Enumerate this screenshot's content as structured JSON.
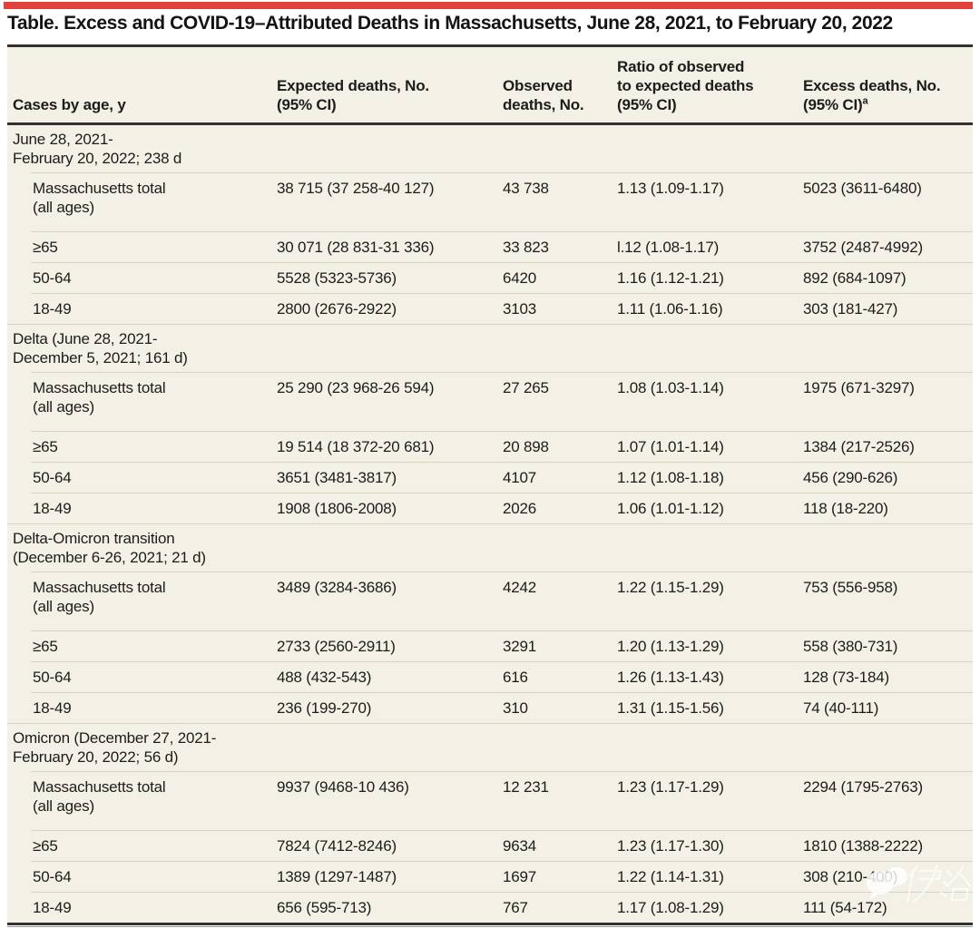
{
  "page": {
    "title": "Table. Excess and COVID-19–Attributed Deaths in Massachusetts, June 28, 2021, to February 20, 2022"
  },
  "colors": {
    "accent_red": "#e2403b",
    "table_background": "#f3f1e5",
    "row_separator": "#d7d4c5",
    "rule_dark": "#32312d",
    "text": "#1d1c1a"
  },
  "table": {
    "columns": [
      {
        "lines": [
          "Cases by age, y"
        ]
      },
      {
        "lines": [
          "Expected deaths, No.",
          "(95% CI)"
        ]
      },
      {
        "lines": [
          "Observed",
          "deaths, No."
        ]
      },
      {
        "lines": [
          "Ratio of observed",
          "to expected deaths",
          "(95% CI)"
        ]
      },
      {
        "lines": [
          "Excess deaths, No.",
          "(95% CI)"
        ],
        "sup": "a"
      }
    ],
    "sections": [
      {
        "label_lines": [
          "June 28, 2021-",
          "February 20, 2022; 238 d"
        ],
        "rows": [
          {
            "age_lines": [
              "Massachusetts total",
              "(all ages)"
            ],
            "expected": "38 715 (37 258-40 127)",
            "observed": "43 738",
            "ratio": "1.13 (1.09-1.17)",
            "excess": "5023 (3611-6480)"
          },
          {
            "age_lines": [
              "≥65"
            ],
            "expected": "30 071 (28 831-31 336)",
            "observed": "33 823",
            "ratio": "l.12 (1.08-1.17)",
            "excess": "3752 (2487-4992)"
          },
          {
            "age_lines": [
              "50-64"
            ],
            "expected": "5528 (5323-5736)",
            "observed": "6420",
            "ratio": "1.16 (1.12-1.21)",
            "excess": "892 (684-1097)"
          },
          {
            "age_lines": [
              "18-49"
            ],
            "expected": "2800 (2676-2922)",
            "observed": "3103",
            "ratio": "1.11 (1.06-1.16)",
            "excess": "303 (181-427)"
          }
        ]
      },
      {
        "label_lines": [
          "Delta (June 28, 2021-",
          "December 5, 2021; 161 d)"
        ],
        "rows": [
          {
            "age_lines": [
              "Massachusetts total",
              "(all ages)"
            ],
            "expected": "25 290 (23 968-26 594)",
            "observed": "27 265",
            "ratio": "1.08 (1.03-1.14)",
            "excess": "1975 (671-3297)"
          },
          {
            "age_lines": [
              "≥65"
            ],
            "expected": "19 514 (18 372-20 681)",
            "observed": "20 898",
            "ratio": "1.07 (1.01-1.14)",
            "excess": "1384 (217-2526)"
          },
          {
            "age_lines": [
              "50-64"
            ],
            "expected": "3651 (3481-3817)",
            "observed": "4107",
            "ratio": "1.12 (1.08-1.18)",
            "excess": "456 (290-626)"
          },
          {
            "age_lines": [
              "18-49"
            ],
            "expected": "1908 (1806-2008)",
            "observed": "2026",
            "ratio": "1.06 (1.01-1.12)",
            "excess": "118 (18-220)"
          }
        ]
      },
      {
        "label_lines": [
          "Delta-Omicron transition",
          "(December 6-26, 2021; 21 d)"
        ],
        "rows": [
          {
            "age_lines": [
              "Massachusetts total",
              "(all ages)"
            ],
            "expected": "3489 (3284-3686)",
            "observed": "4242",
            "ratio": "1.22 (1.15-1.29)",
            "excess": "753 (556-958)"
          },
          {
            "age_lines": [
              "≥65"
            ],
            "expected": "2733 (2560-2911)",
            "observed": "3291",
            "ratio": "1.20 (1.13-1.29)",
            "excess": "558 (380-731)"
          },
          {
            "age_lines": [
              "50-64"
            ],
            "expected": "488 (432-543)",
            "observed": "616",
            "ratio": "1.26 (1.13-1.43)",
            "excess": "128 (73-184)"
          },
          {
            "age_lines": [
              "18-49"
            ],
            "expected": "236 (199-270)",
            "observed": "310",
            "ratio": "1.31 (1.15-1.56)",
            "excess": "74 (40-111)"
          }
        ]
      },
      {
        "label_lines": [
          "Omicron (December 27, 2021-",
          "February 20, 2022; 56 d)"
        ],
        "rows": [
          {
            "age_lines": [
              "Massachusetts total",
              "(all ages)"
            ],
            "expected": "9937 (9468-10 436)",
            "observed": "12 231",
            "ratio": "1.23 (1.17-1.29)",
            "excess": "2294 (1795-2763)"
          },
          {
            "age_lines": [
              "≥65"
            ],
            "expected": "7824 (7412-8246)",
            "observed": "9634",
            "ratio": "1.23 (1.17-1.30)",
            "excess": "1810 (1388-2222)"
          },
          {
            "age_lines": [
              "50-64"
            ],
            "expected": "1389 (1297-1487)",
            "observed": "1697",
            "ratio": "1.22 (1.14-1.31)",
            "excess": "308 (210-400)"
          },
          {
            "age_lines": [
              "18-49"
            ],
            "expected": "656 (595-713)",
            "observed": "767",
            "ratio": "1.17 (1.08-1.29)",
            "excess": "111 (54-172)"
          }
        ]
      }
    ]
  },
  "watermark": {
    "text": "伊洛",
    "icon": "wechat-chat-bubbles"
  }
}
